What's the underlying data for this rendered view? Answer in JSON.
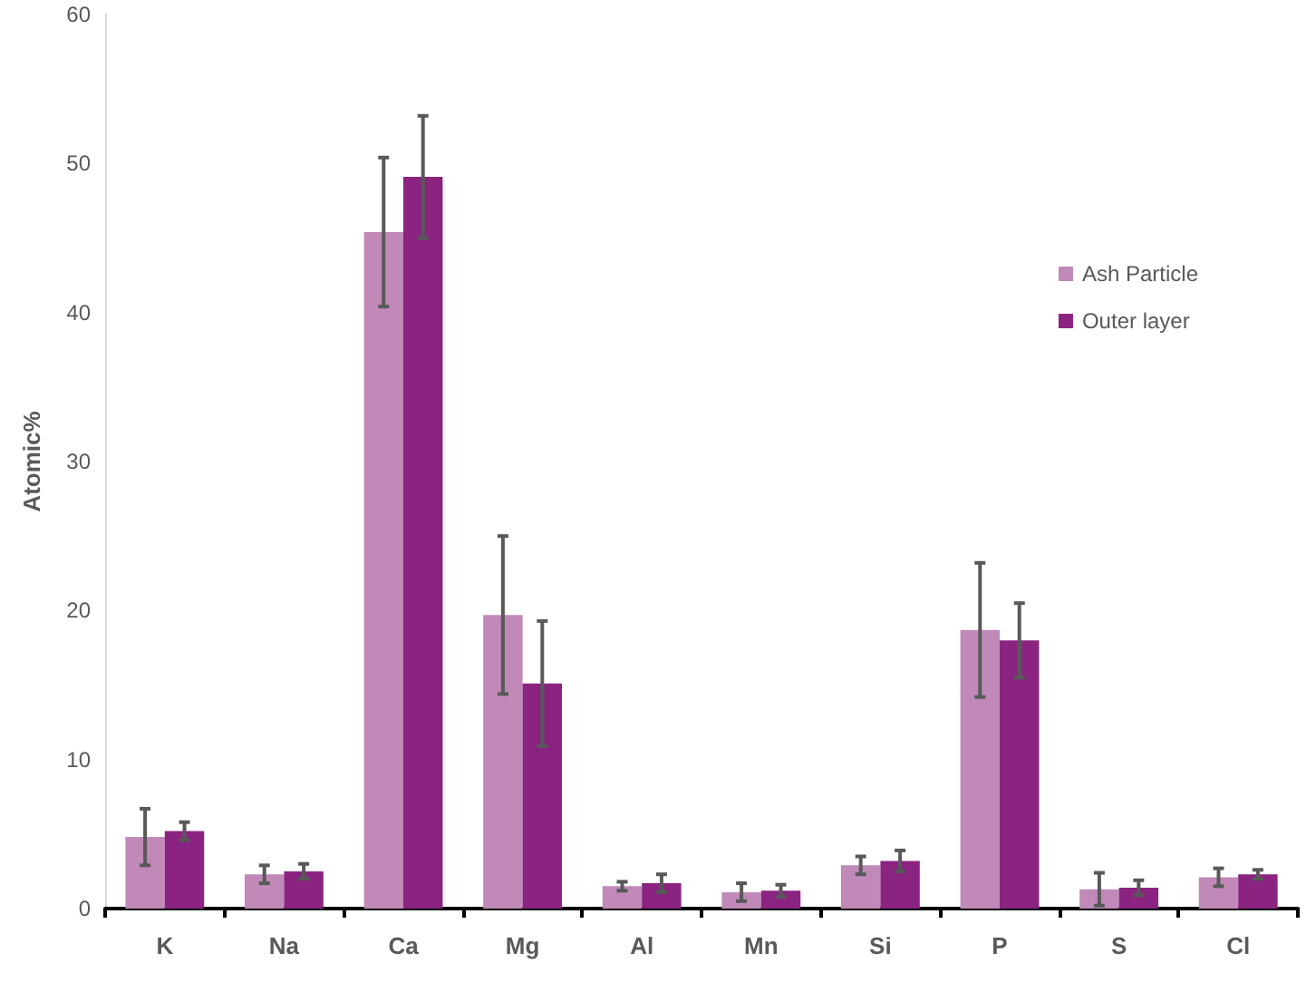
{
  "chart_data": {
    "type": "bar",
    "ylabel": "Atomic%",
    "categories": [
      "K",
      "Na",
      "Ca",
      "Mg",
      "Al",
      "Mn",
      "Si",
      "P",
      "S",
      "Cl"
    ],
    "series": [
      {
        "name": "Ash Particle",
        "color": "#c089b8",
        "values": [
          4.8,
          2.3,
          45.4,
          19.7,
          1.5,
          1.1,
          2.9,
          18.7,
          1.3,
          2.1
        ],
        "errors": [
          1.9,
          0.6,
          5.0,
          5.3,
          0.3,
          0.6,
          0.6,
          4.5,
          1.1,
          0.6
        ]
      },
      {
        "name": "Outer layer",
        "color": "#8b2381",
        "values": [
          5.2,
          2.5,
          49.1,
          15.1,
          1.7,
          1.2,
          3.2,
          18.0,
          1.4,
          2.3
        ],
        "errors": [
          0.6,
          0.5,
          4.1,
          4.2,
          0.6,
          0.4,
          0.7,
          2.5,
          0.5,
          0.3
        ]
      }
    ],
    "ylim": [
      0,
      60
    ],
    "yticks": [
      0,
      10,
      20,
      30,
      40,
      50,
      60
    ],
    "grid": false,
    "legend": "top right"
  }
}
